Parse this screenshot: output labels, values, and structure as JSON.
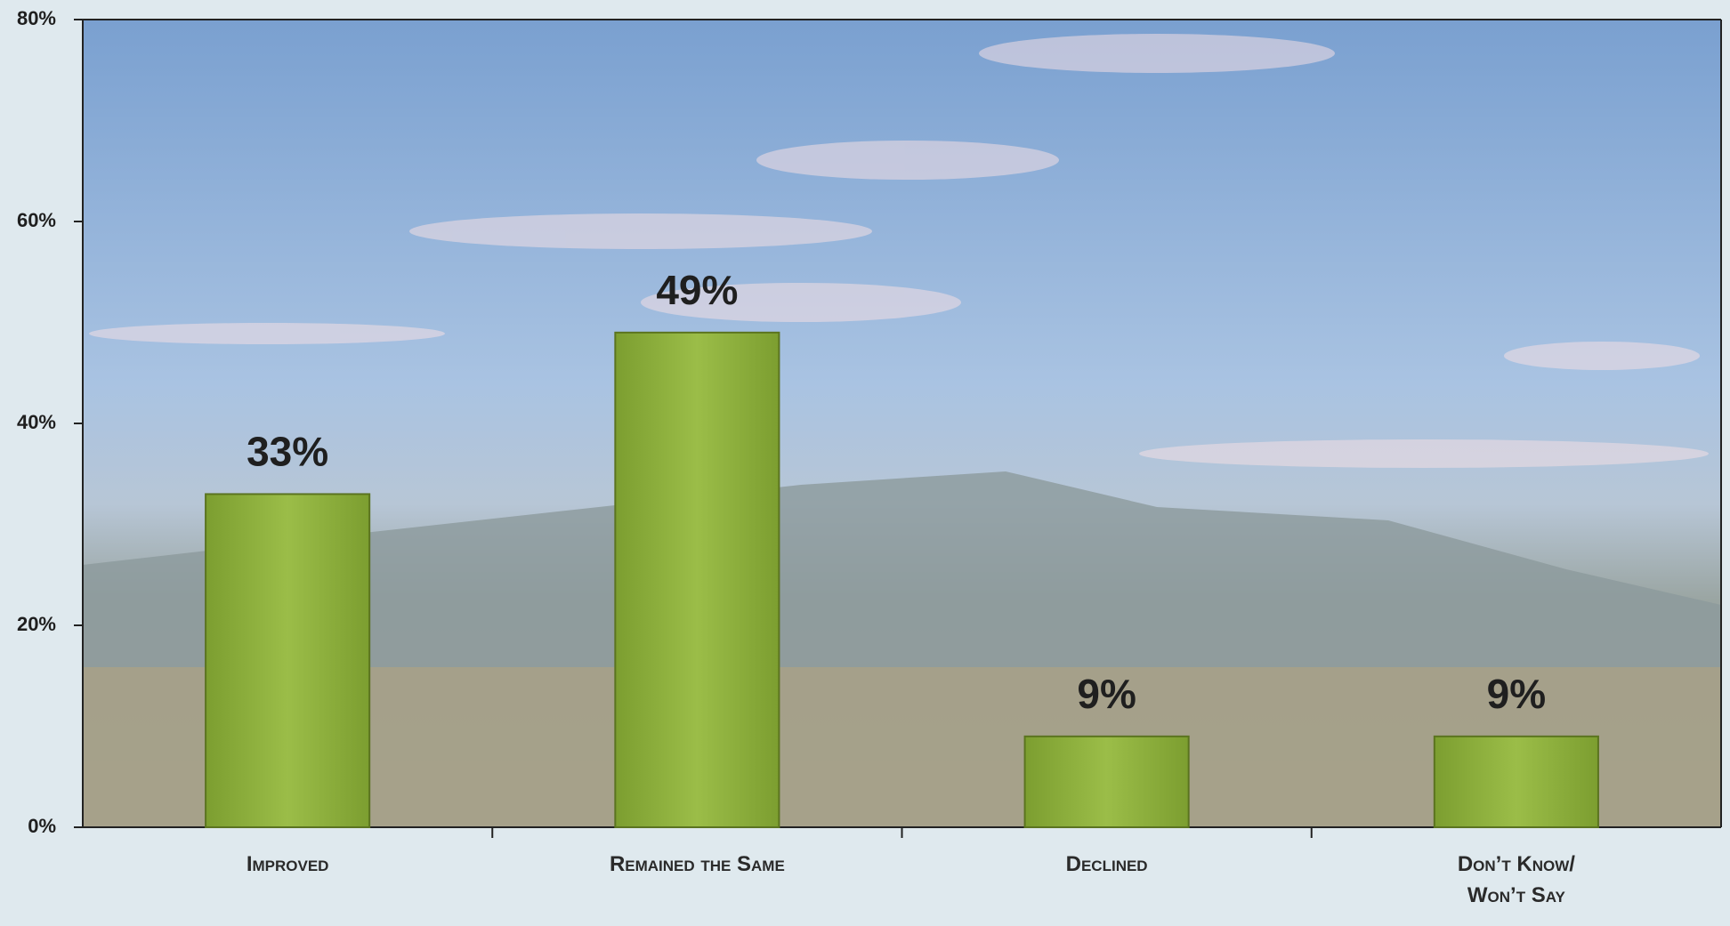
{
  "chart_data": {
    "type": "bar",
    "categories": [
      "Improved",
      "Remained the Same",
      "Declined",
      "Don’t Know/ Won’t Say"
    ],
    "values": [
      33,
      49,
      9,
      9
    ],
    "value_labels": [
      "33%",
      "49%",
      "9%",
      "9%"
    ],
    "color": "#8aae3c",
    "ylim": [
      0,
      80
    ],
    "yticks": [
      {
        "value": 0,
        "label": "0%"
      },
      {
        "value": 20,
        "label": "20%"
      },
      {
        "value": 40,
        "label": "40%"
      },
      {
        "value": 60,
        "label": "60%"
      },
      {
        "value": 80,
        "label": "80%"
      }
    ]
  }
}
